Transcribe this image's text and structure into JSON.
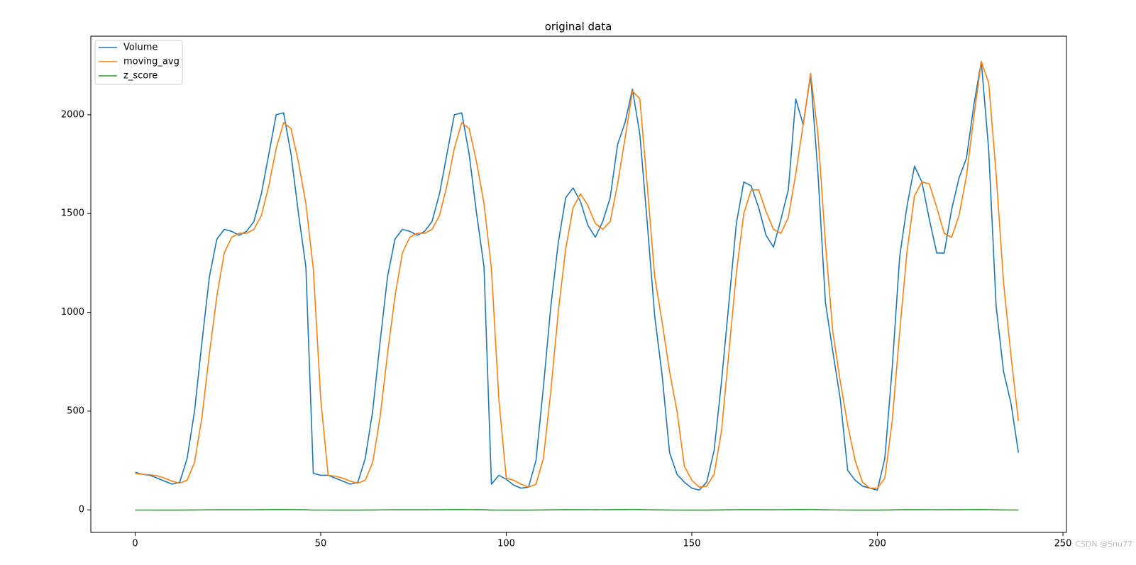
{
  "chart_data": {
    "type": "line",
    "title": "original data",
    "x": [
      0,
      2,
      4,
      6,
      8,
      10,
      12,
      14,
      16,
      18,
      20,
      22,
      24,
      26,
      28,
      30,
      32,
      34,
      36,
      38,
      40,
      42,
      44,
      46,
      48,
      50,
      52,
      54,
      56,
      58,
      60,
      62,
      64,
      66,
      68,
      70,
      72,
      74,
      76,
      78,
      80,
      82,
      84,
      86,
      88,
      90,
      92,
      94,
      96,
      98,
      100,
      102,
      104,
      106,
      108,
      110,
      112,
      114,
      116,
      118,
      120,
      122,
      124,
      126,
      128,
      130,
      132,
      134,
      136,
      138,
      140,
      142,
      144,
      146,
      148,
      150,
      152,
      154,
      156,
      158,
      160,
      162,
      164,
      166,
      168,
      170,
      172,
      174,
      176,
      178,
      180,
      182,
      184,
      186,
      188,
      190,
      192,
      194,
      196,
      198,
      200,
      202,
      204,
      206,
      208,
      210,
      212,
      214,
      216,
      218,
      220,
      222,
      224,
      226,
      228,
      230,
      232,
      234,
      236,
      238
    ],
    "series": [
      {
        "name": "Volume",
        "color": "#1f77b4",
        "values": [
          190,
          180,
          175,
          160,
          145,
          130,
          140,
          260,
          500,
          850,
          1180,
          1370,
          1420,
          1410,
          1390,
          1410,
          1460,
          1600,
          1800,
          2000,
          2010,
          1800,
          1500,
          1230,
          185,
          175,
          175,
          160,
          145,
          130,
          140,
          260,
          500,
          850,
          1180,
          1370,
          1420,
          1410,
          1390,
          1410,
          1460,
          1600,
          1800,
          2000,
          2010,
          1800,
          1500,
          1230,
          130,
          175,
          155,
          125,
          110,
          115,
          250,
          620,
          1030,
          1350,
          1580,
          1630,
          1560,
          1440,
          1380,
          1460,
          1580,
          1850,
          1960,
          2130,
          1900,
          1450,
          980,
          680,
          290,
          180,
          140,
          110,
          100,
          140,
          300,
          650,
          1050,
          1450,
          1660,
          1640,
          1530,
          1390,
          1330,
          1470,
          1620,
          2080,
          1950,
          2200,
          1700,
          1050,
          800,
          560,
          200,
          150,
          120,
          110,
          100,
          260,
          720,
          1280,
          1540,
          1740,
          1660,
          1470,
          1300,
          1300,
          1520,
          1680,
          1780,
          2050,
          2270,
          1820,
          1030,
          700,
          540,
          290
        ]
      },
      {
        "name": "moving_avg",
        "color": "#ff7f0e",
        "values": [
          185,
          180,
          178,
          172,
          160,
          145,
          135,
          150,
          240,
          470,
          790,
          1080,
          1300,
          1380,
          1400,
          1400,
          1420,
          1490,
          1640,
          1830,
          1960,
          1930,
          1760,
          1550,
          1220,
          560,
          175,
          170,
          160,
          145,
          135,
          150,
          240,
          470,
          790,
          1080,
          1300,
          1380,
          1400,
          1400,
          1420,
          1490,
          1640,
          1830,
          1960,
          1930,
          1760,
          1550,
          1220,
          560,
          160,
          150,
          130,
          115,
          130,
          260,
          600,
          1000,
          1320,
          1530,
          1600,
          1540,
          1450,
          1420,
          1460,
          1650,
          1880,
          2120,
          2080,
          1640,
          1180,
          950,
          700,
          500,
          220,
          150,
          115,
          120,
          180,
          400,
          800,
          1200,
          1500,
          1620,
          1620,
          1510,
          1420,
          1400,
          1480,
          1700,
          1950,
          2210,
          1900,
          1350,
          900,
          650,
          430,
          250,
          140,
          110,
          110,
          160,
          450,
          900,
          1310,
          1590,
          1660,
          1650,
          1530,
          1400,
          1380,
          1490,
          1690,
          1990,
          2270,
          2160,
          1700,
          1150,
          780,
          450
        ]
      },
      {
        "name": "z_score",
        "color": "#2ca02c",
        "values": [
          -1.0,
          -1.0,
          -1.0,
          -1.1,
          -1.1,
          -1.1,
          -1.1,
          -0.9,
          -0.6,
          -0.1,
          0.4,
          0.7,
          0.7,
          0.7,
          0.7,
          0.7,
          0.8,
          1.0,
          1.3,
          1.6,
          1.6,
          1.3,
          0.9,
          0.5,
          -1.0,
          -1.0,
          -1.0,
          -1.1,
          -1.1,
          -1.1,
          -1.1,
          -0.9,
          -0.6,
          -0.1,
          0.4,
          0.7,
          0.7,
          0.7,
          0.7,
          0.7,
          0.8,
          1.0,
          1.3,
          1.6,
          1.6,
          1.3,
          0.9,
          0.5,
          -1.1,
          -1.0,
          -1.1,
          -1.1,
          -1.1,
          -1.1,
          -0.9,
          -0.4,
          0.2,
          0.6,
          1.0,
          1.0,
          0.9,
          0.8,
          0.7,
          0.8,
          1.0,
          1.4,
          1.5,
          1.8,
          1.4,
          0.8,
          0.1,
          -0.3,
          -0.9,
          -1.0,
          -1.1,
          -1.1,
          -1.1,
          -1.1,
          -0.9,
          -0.4,
          0.2,
          0.8,
          1.1,
          1.1,
          0.9,
          0.7,
          0.6,
          0.8,
          1.0,
          1.7,
          1.5,
          1.9,
          1.1,
          0.2,
          -0.1,
          -0.5,
          -1.0,
          -1.1,
          -1.1,
          -1.1,
          -1.1,
          -0.9,
          -0.3,
          0.5,
          0.9,
          1.2,
          1.1,
          0.8,
          0.6,
          0.6,
          0.9,
          1.1,
          1.3,
          1.6,
          2.0,
          1.3,
          0.2,
          -0.3,
          -0.5,
          -0.9
        ]
      }
    ],
    "xlim": [
      -11.95,
      250.95
    ],
    "ylim": [
      -114,
      2398
    ],
    "xticks": [
      0,
      50,
      100,
      150,
      200,
      250
    ],
    "yticks": [
      0,
      500,
      1000,
      1500,
      2000
    ],
    "legend": "upper left",
    "watermark": "CSDN @Snu77"
  }
}
